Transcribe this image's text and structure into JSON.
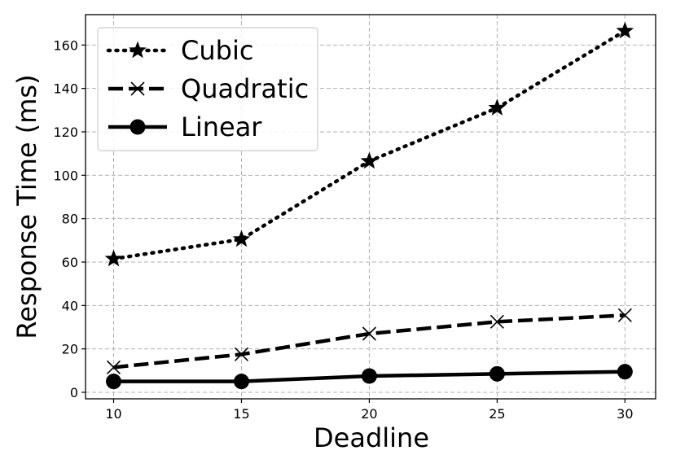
{
  "chart_data": {
    "type": "line",
    "title": "",
    "xlabel": "Deadline",
    "ylabel": "Response Time (ms)",
    "x": [
      10,
      15,
      20,
      25,
      30
    ],
    "xticks": [
      10,
      15,
      20,
      25,
      30
    ],
    "yticks": [
      0,
      20,
      40,
      60,
      80,
      100,
      120,
      140,
      160
    ],
    "xlim": [
      8.9,
      31.2
    ],
    "ylim": [
      -3,
      174
    ],
    "grid": true,
    "legend_position": "top-left",
    "series": [
      {
        "name": "Cubic",
        "linestyle": "dotted",
        "marker": "star",
        "color": "#000000",
        "values": [
          61.5,
          70.5,
          106.5,
          131,
          166.5
        ]
      },
      {
        "name": "Quadratic",
        "linestyle": "dashed",
        "marker": "x",
        "color": "#000000",
        "values": [
          11.5,
          17.5,
          27,
          32.5,
          35.5
        ]
      },
      {
        "name": "Linear",
        "linestyle": "solid",
        "marker": "circle",
        "color": "#000000",
        "values": [
          5,
          5,
          7.5,
          8.5,
          9.5
        ]
      }
    ]
  }
}
